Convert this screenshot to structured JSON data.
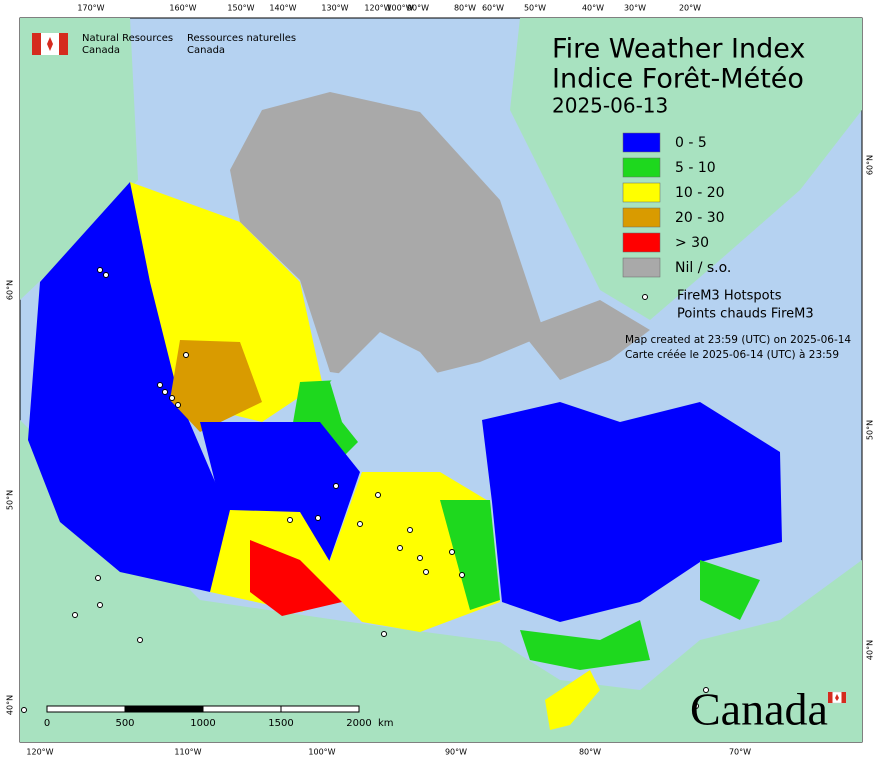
{
  "header": {
    "agency_en": [
      "Natural Resources",
      "Canada"
    ],
    "agency_fr": [
      "Ressources naturelles",
      "Canada"
    ]
  },
  "title": [
    "Fire Weather Index",
    "Indice Forêt-Météo"
  ],
  "date": "2025-06-13",
  "legend": [
    {
      "label": "0 - 5",
      "color": "#0000ff"
    },
    {
      "label": "5 - 10",
      "color": "#1ed81e"
    },
    {
      "label": "10 - 20",
      "color": "#ffff00"
    },
    {
      "label": "20 - 30",
      "color": "#d99b00"
    },
    {
      "label": "> 30",
      "color": "#ff0000"
    },
    {
      "label": "Nil / s.o.",
      "color": "#a9a9a9"
    }
  ],
  "hotspots": [
    "FireM3 Hotspots",
    "Points chauds FireM3"
  ],
  "notes": [
    "Map created at 23:59 (UTC) on 2025-06-14",
    "Carte créée le 2025-06-14 (UTC) à 23:59"
  ],
  "graticule": {
    "top": [
      "170°W",
      "160°W",
      "150°W",
      "140°W",
      "130°W",
      "120°W",
      "100°W",
      "90°W",
      "80°W",
      "60°W",
      "50°W",
      "40°W",
      "30°W",
      "20°W"
    ],
    "bottom": [
      "120°W",
      "110°W",
      "100°W",
      "90°W",
      "80°W",
      "70°W"
    ],
    "left": [
      "60°N",
      "50°N",
      "40°N"
    ],
    "right": [
      "60°N",
      "50°N",
      "40°N"
    ]
  },
  "scale": {
    "labels": [
      "0",
      "500",
      "1000",
      "1500",
      "2000"
    ],
    "unit": "km"
  },
  "wordmark": "Canada"
}
